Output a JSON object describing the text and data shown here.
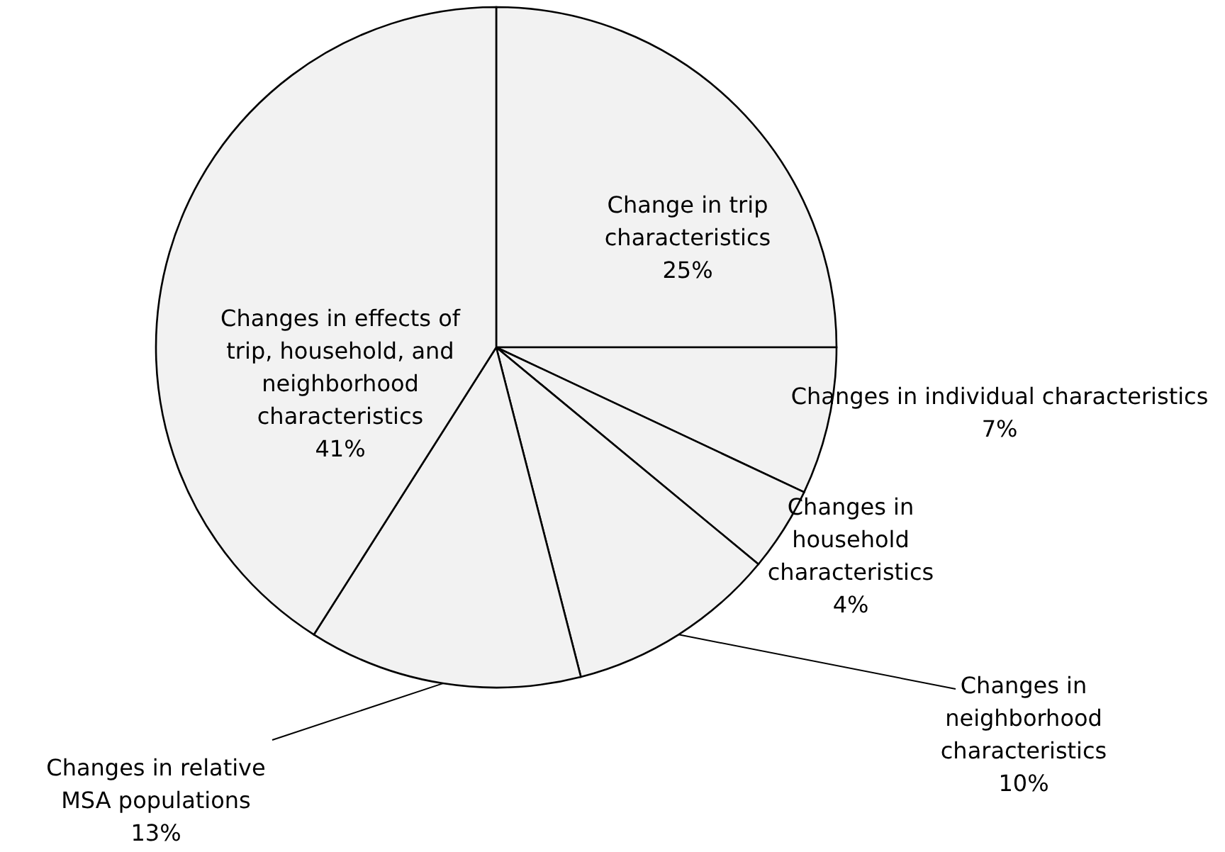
{
  "chart_data": {
    "type": "pie",
    "categories": [
      "Change in trip characteristics",
      "Changes in individual characteristics",
      "Changes in household characteristics",
      "Changes in neighborhood characteristics",
      "Changes in relative MSA populations",
      "Changes in effects of trip, household, and neighborhood characteristics"
    ],
    "values": [
      25,
      7,
      4,
      10,
      13,
      41
    ],
    "colors": [
      "#f2f2f2",
      "#f2f2f2",
      "#f2f2f2",
      "#f2f2f2",
      "#f2f2f2",
      "#f2f2f2"
    ],
    "value_labels": [
      "25%",
      "7%",
      "4%",
      "10%",
      "13%",
      "41%"
    ]
  }
}
